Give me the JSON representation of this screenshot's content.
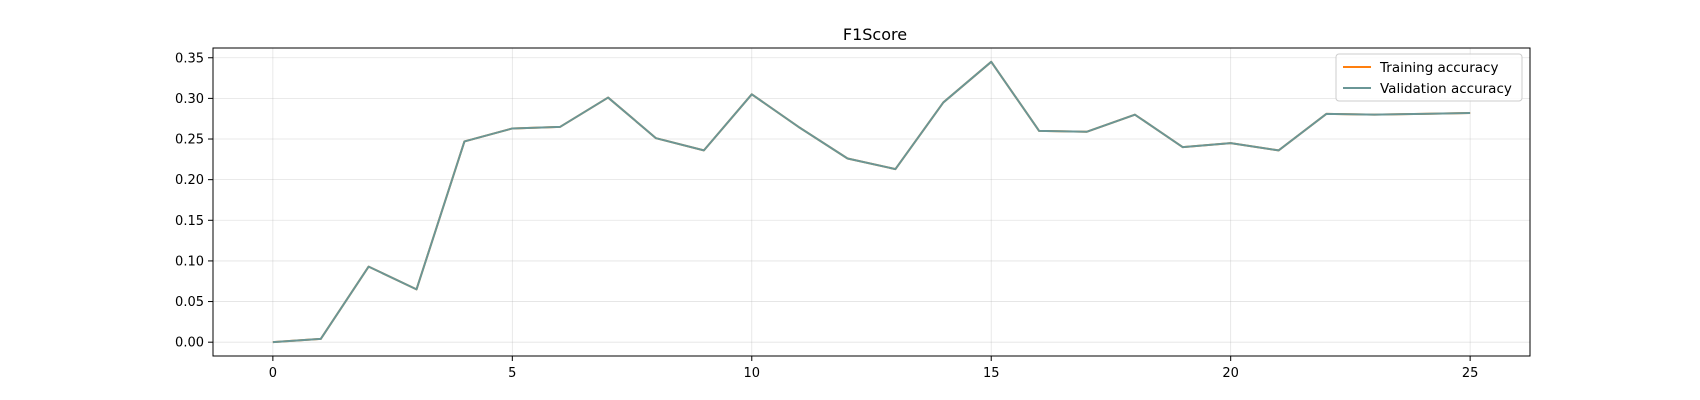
{
  "chart_data": {
    "type": "line",
    "title": "F1Score",
    "xlabel": "",
    "ylabel": "",
    "xlim": [
      -1.25,
      26.25
    ],
    "ylim": [
      -0.017,
      0.362
    ],
    "xticks": [
      "0",
      "5",
      "10",
      "15",
      "20",
      "25"
    ],
    "yticks": [
      "0.00",
      "0.05",
      "0.10",
      "0.15",
      "0.20",
      "0.25",
      "0.30",
      "0.35"
    ],
    "grid": true,
    "legend_position": "top-right",
    "x": [
      0,
      1,
      2,
      3,
      4,
      5,
      6,
      7,
      8,
      9,
      10,
      11,
      12,
      13,
      14,
      15,
      16,
      17,
      18,
      19,
      20,
      21,
      22,
      23,
      24,
      25
    ],
    "series": [
      {
        "name": "Training accuracy",
        "color": "#ff7f0e",
        "values": [
          0.0,
          0.004,
          0.093,
          0.065,
          0.247,
          0.263,
          0.265,
          0.301,
          0.251,
          0.236,
          0.305,
          0.264,
          0.226,
          0.213,
          0.295,
          0.345,
          0.26,
          0.259,
          0.28,
          0.24,
          0.245,
          0.236,
          0.281,
          0.28,
          0.281,
          0.282
        ]
      },
      {
        "name": "Validation accuracy",
        "color": "#6a9696",
        "values": [
          0.0,
          0.004,
          0.093,
          0.065,
          0.247,
          0.263,
          0.265,
          0.301,
          0.251,
          0.236,
          0.305,
          0.264,
          0.226,
          0.213,
          0.295,
          0.345,
          0.26,
          0.259,
          0.28,
          0.24,
          0.245,
          0.236,
          0.281,
          0.28,
          0.281,
          0.282
        ]
      }
    ]
  }
}
